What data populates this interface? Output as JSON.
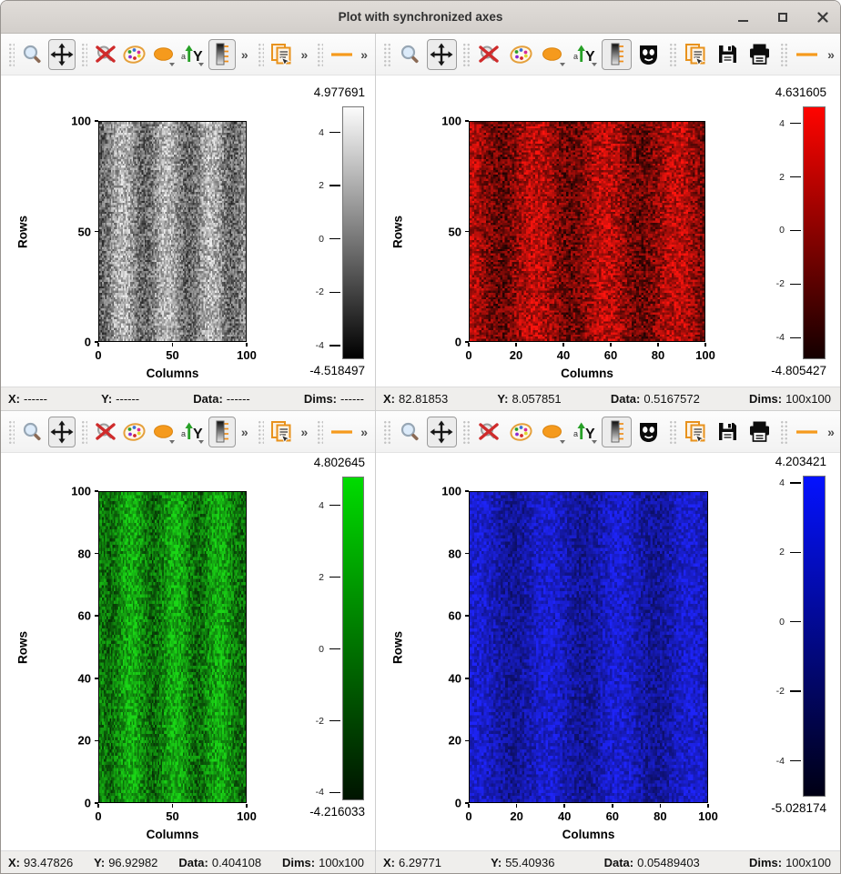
{
  "window": {
    "title": "Plot with synchronized axes",
    "controls": [
      "minimize",
      "maximize",
      "close"
    ]
  },
  "status_labels": {
    "x": "X:",
    "y": "Y:",
    "data": "Data:",
    "dims": "Dims:"
  },
  "accent_color": "#f59a1d",
  "panels": [
    {
      "id": "top-left",
      "colormap": "gray",
      "toolbar": {
        "items": [
          {
            "icon": "grip"
          },
          {
            "icon": "zoom"
          },
          {
            "icon": "pan",
            "pressed": true
          },
          {
            "icon": "grip"
          },
          {
            "icon": "reset-zoom"
          },
          {
            "icon": "palette"
          },
          {
            "icon": "ellipse",
            "dropdown": true
          },
          {
            "icon": "y-axis-invert",
            "dropdown": true
          },
          {
            "icon": "colorbar",
            "pressed": true
          },
          {
            "icon": "chevron"
          },
          {
            "icon": "grip"
          },
          {
            "icon": "copy"
          },
          {
            "icon": "chevron"
          },
          {
            "icon": "grip"
          },
          {
            "icon": "profile-line"
          },
          {
            "icon": "chevron"
          }
        ]
      },
      "axes": {
        "xlabel": "Columns",
        "ylabel": "Rows",
        "x_ticks": [
          0,
          50,
          100
        ],
        "y_ticks": [
          100,
          50,
          0
        ]
      },
      "colorbar": {
        "vmax_label": "4.977691",
        "vmin_label": "-4.518497",
        "vmax": 4.977691,
        "vmin": -4.518497,
        "ticks": [
          4,
          2,
          0,
          -2,
          -4
        ],
        "gradient_top": "#fbfbfb",
        "gradient_bottom": "#000000"
      },
      "status": {
        "x": "------",
        "y": "------",
        "data": "------",
        "dims": "------"
      }
    },
    {
      "id": "top-right",
      "colormap": "red",
      "toolbar": {
        "items": [
          {
            "icon": "grip"
          },
          {
            "icon": "zoom"
          },
          {
            "icon": "pan",
            "pressed": true
          },
          {
            "icon": "grip"
          },
          {
            "icon": "reset-zoom"
          },
          {
            "icon": "palette"
          },
          {
            "icon": "ellipse",
            "dropdown": true
          },
          {
            "icon": "y-axis-invert",
            "dropdown": true
          },
          {
            "icon": "colorbar",
            "pressed": true
          },
          {
            "icon": "mask"
          },
          {
            "icon": "grip"
          },
          {
            "icon": "copy"
          },
          {
            "icon": "save"
          },
          {
            "icon": "print"
          },
          {
            "icon": "grip"
          },
          {
            "icon": "profile-line"
          },
          {
            "icon": "spacer"
          },
          {
            "icon": "chevron"
          }
        ]
      },
      "axes": {
        "xlabel": "Columns",
        "ylabel": "Rows",
        "x_ticks": [
          0,
          20,
          40,
          60,
          80,
          100
        ],
        "y_ticks": [
          100,
          50,
          0
        ]
      },
      "colorbar": {
        "vmax_label": "4.631605",
        "vmin_label": "-4.805427",
        "vmax": 4.631605,
        "vmin": -4.805427,
        "ticks": [
          4,
          2,
          0,
          -2,
          -4
        ],
        "gradient_top": "#ff0400",
        "gradient_bottom": "#140000"
      },
      "status": {
        "x": "82.81853",
        "y": "8.057851",
        "data": "0.5167572",
        "dims": "100x100"
      }
    },
    {
      "id": "bottom-left",
      "colormap": "green",
      "toolbar": {
        "items": [
          {
            "icon": "grip"
          },
          {
            "icon": "zoom"
          },
          {
            "icon": "pan",
            "pressed": true
          },
          {
            "icon": "grip"
          },
          {
            "icon": "reset-zoom"
          },
          {
            "icon": "palette"
          },
          {
            "icon": "ellipse",
            "dropdown": true
          },
          {
            "icon": "y-axis-invert",
            "dropdown": true
          },
          {
            "icon": "colorbar",
            "pressed": true
          },
          {
            "icon": "chevron"
          },
          {
            "icon": "grip"
          },
          {
            "icon": "copy"
          },
          {
            "icon": "chevron"
          },
          {
            "icon": "grip"
          },
          {
            "icon": "profile-line"
          },
          {
            "icon": "chevron"
          }
        ]
      },
      "axes": {
        "xlabel": "Columns",
        "ylabel": "Rows",
        "x_ticks": [
          0,
          50,
          100
        ],
        "y_ticks": [
          100,
          80,
          60,
          40,
          20,
          0
        ]
      },
      "colorbar": {
        "vmax_label": "4.802645",
        "vmin_label": "-4.216033",
        "vmax": 4.802645,
        "vmin": -4.216033,
        "ticks": [
          4,
          2,
          0,
          -2,
          -4
        ],
        "gradient_top": "#00dc00",
        "gradient_bottom": "#001400"
      },
      "status": {
        "x": "93.47826",
        "y": "96.92982",
        "data": "0.404108",
        "dims": "100x100"
      }
    },
    {
      "id": "bottom-right",
      "colormap": "blue",
      "toolbar": {
        "items": [
          {
            "icon": "grip"
          },
          {
            "icon": "zoom"
          },
          {
            "icon": "pan",
            "pressed": true
          },
          {
            "icon": "grip"
          },
          {
            "icon": "reset-zoom"
          },
          {
            "icon": "palette"
          },
          {
            "icon": "ellipse",
            "dropdown": true
          },
          {
            "icon": "y-axis-invert",
            "dropdown": true
          },
          {
            "icon": "colorbar",
            "pressed": true
          },
          {
            "icon": "mask"
          },
          {
            "icon": "grip"
          },
          {
            "icon": "copy"
          },
          {
            "icon": "save"
          },
          {
            "icon": "print"
          },
          {
            "icon": "grip"
          },
          {
            "icon": "profile-line"
          },
          {
            "icon": "spacer"
          },
          {
            "icon": "chevron"
          }
        ]
      },
      "axes": {
        "xlabel": "Columns",
        "ylabel": "Rows",
        "x_ticks": [
          0,
          20,
          40,
          60,
          80,
          100
        ],
        "y_ticks": [
          100,
          80,
          60,
          40,
          20,
          0
        ]
      },
      "colorbar": {
        "vmax_label": "4.203421",
        "vmin_label": "-5.028174",
        "vmax": 4.203421,
        "vmin": -5.028174,
        "ticks": [
          4,
          2,
          0,
          -2,
          -4
        ],
        "gradient_top": "#0512ff",
        "gradient_bottom": "#000014"
      },
      "status": {
        "x": "6.29771",
        "y": "55.40936",
        "data": "0.05489403",
        "dims": "100x100"
      }
    }
  ],
  "chart_data": [
    {
      "type": "heatmap",
      "panel": "top-left",
      "colormap": "gray",
      "xlabel": "Columns",
      "ylabel": "Rows",
      "x_range": [
        0,
        100
      ],
      "y_range": [
        0,
        100
      ],
      "dims": "100x100",
      "vmin": -4.518497,
      "vmax": 4.977691,
      "colorbar_ticks": [
        4,
        2,
        0,
        -2,
        -4
      ],
      "pattern": "100x100 gaussian-like random noise with faint vertical sinusoidal bands"
    },
    {
      "type": "heatmap",
      "panel": "top-right",
      "colormap": "red",
      "xlabel": "Columns",
      "ylabel": "Rows",
      "x_range": [
        0,
        100
      ],
      "y_range": [
        0,
        100
      ],
      "dims": "100x100",
      "vmin": -4.805427,
      "vmax": 4.631605,
      "colorbar_ticks": [
        4,
        2,
        0,
        -2,
        -4
      ],
      "pattern": "100x100 gaussian-like random noise with faint vertical sinusoidal bands"
    },
    {
      "type": "heatmap",
      "panel": "bottom-left",
      "colormap": "green",
      "xlabel": "Columns",
      "ylabel": "Rows",
      "x_range": [
        0,
        100
      ],
      "y_range": [
        0,
        100
      ],
      "dims": "100x100",
      "vmin": -4.216033,
      "vmax": 4.802645,
      "colorbar_ticks": [
        4,
        2,
        0,
        -2,
        -4
      ],
      "pattern": "100x100 gaussian-like random noise with faint vertical sinusoidal bands"
    },
    {
      "type": "heatmap",
      "panel": "bottom-right",
      "colormap": "blue",
      "xlabel": "Columns",
      "ylabel": "Rows",
      "x_range": [
        0,
        100
      ],
      "y_range": [
        0,
        100
      ],
      "dims": "100x100",
      "vmin": -5.028174,
      "vmax": 4.203421,
      "colorbar_ticks": [
        4,
        2,
        0,
        -2,
        -4
      ],
      "pattern": "100x100 gaussian-like random noise with faint vertical sinusoidal bands"
    }
  ]
}
